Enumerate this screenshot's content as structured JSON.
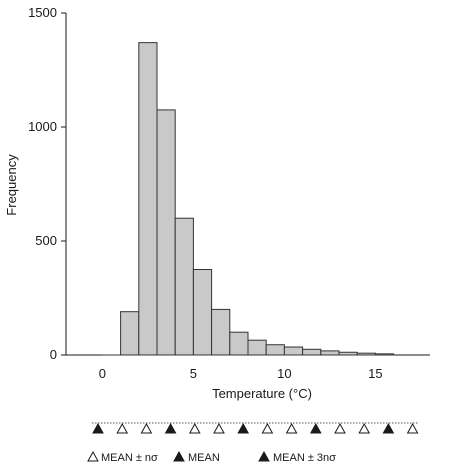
{
  "chart_data": {
    "type": "bar",
    "title": "",
    "xlabel": "Temperature (°C)",
    "ylabel": "Frequency",
    "x_ticks": [
      "0",
      "5",
      "10",
      "15"
    ],
    "y_ticks": [
      "0",
      "500",
      "1000",
      "1500"
    ],
    "xlim": [
      -2,
      18
    ],
    "ylim": [
      0,
      1500
    ],
    "grid": false,
    "bin_width": 1,
    "bins": [
      {
        "start": 1,
        "end": 2,
        "value": 190
      },
      {
        "start": 2,
        "end": 3,
        "value": 1370
      },
      {
        "start": 3,
        "end": 4,
        "value": 1075
      },
      {
        "start": 4,
        "end": 5,
        "value": 600
      },
      {
        "start": 5,
        "end": 6,
        "value": 375
      },
      {
        "start": 6,
        "end": 7,
        "value": 200
      },
      {
        "start": 7,
        "end": 8,
        "value": 100
      },
      {
        "start": 8,
        "end": 9,
        "value": 65
      },
      {
        "start": 9,
        "end": 10,
        "value": 45
      },
      {
        "start": 10,
        "end": 11,
        "value": 35
      },
      {
        "start": 11,
        "end": 12,
        "value": 25
      },
      {
        "start": 12,
        "end": 13,
        "value": 18
      },
      {
        "start": 13,
        "end": 14,
        "value": 12
      },
      {
        "start": 14,
        "end": 15,
        "value": 8
      },
      {
        "start": 15,
        "end": 16,
        "value": 5
      }
    ],
    "colors": {
      "bar_fill": "#c9c9c9",
      "bar_stroke": "#333333",
      "marker_fill": "#1a1a1a"
    },
    "sigma_markers": {
      "positions": [
        0,
        1,
        2,
        3,
        4,
        5,
        6,
        7,
        8,
        9,
        10,
        11,
        12,
        13
      ],
      "filled": [
        true,
        false,
        false,
        true,
        false,
        false,
        true,
        false,
        false,
        true,
        false,
        false,
        true,
        false
      ]
    },
    "legend": [
      {
        "label": "MEAN ± nσ",
        "marker": "open-triangle"
      },
      {
        "label": "MEAN",
        "marker": "filled-triangle"
      },
      {
        "label": "MEAN ± 3nσ",
        "marker": "filled-triangle"
      }
    ]
  }
}
